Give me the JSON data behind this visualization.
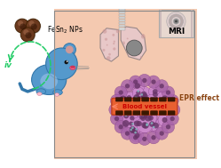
{
  "bg_color": "#f0b090",
  "bg_light": "#f8d8c0",
  "left_bg": "#ffffff",
  "fesn_text": "FeSn$_2$ NPs",
  "iv_text": "iv",
  "mri_text": "MRI",
  "epr_text": "EPR effect",
  "blood_text": "Blood vessel",
  "arrow_color": "#22cc66",
  "np_color_outer": "#6b3a1f",
  "np_color_inner": "#3d1f00",
  "np_highlight": "#c08060",
  "mouse_body": "#5599cc",
  "mouse_light": "#88bbdd",
  "mouse_ear_inner": "#cc9999",
  "mouse_nose": "#ee6688",
  "mouse_paw": "#ffbbcc",
  "lung_fill": "#e8c8c8",
  "lung_edge": "#998888",
  "lung_dot": "#cc9999",
  "trachea_fill": "#dddddd",
  "trachea_edge": "#999999",
  "tumor_fill": "#888888",
  "mri_bg": "#e8d8d0",
  "mri_ring1": "#cccccc",
  "mri_ring2": "#aaaaaa",
  "mri_center": "#555555",
  "mri_shadow": "#bbaaaa",
  "cell_purple": "#cc88cc",
  "cell_purple2": "#aa66aa",
  "cell_nucleus": "#663366",
  "cell_edge": "#884488",
  "cell_teal": "#88cccc",
  "np_dark": "#3a1800",
  "vessel_fill": "#e86030",
  "vessel_edge": "#c04020",
  "vessel_text": "#cc0000",
  "epr_color": "#8B4513",
  "border_color": "#888888"
}
